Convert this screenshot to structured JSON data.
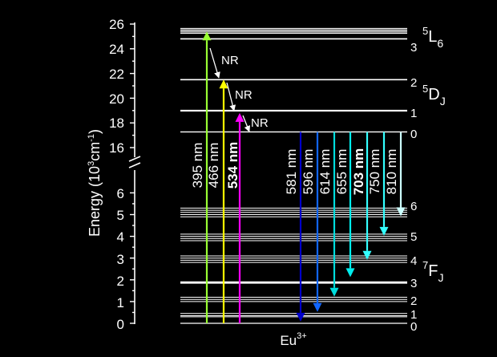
{
  "y_axis": {
    "title": "Energy (10",
    "title_sup": "3",
    "title_mid": "cm",
    "title_sup2": "-1",
    "title_end": ")",
    "upper_ticks": [
      "16",
      "18",
      "20",
      "22",
      "24",
      "26"
    ],
    "lower_ticks": [
      "0",
      "1",
      "2",
      "3",
      "4",
      "5",
      "6"
    ]
  },
  "ion_label": {
    "base": "Eu",
    "sup": "3+"
  },
  "term_labels": {
    "L6": {
      "pre": "5",
      "main": "L",
      "sub": "6"
    },
    "DJ": {
      "pre": "5",
      "main": "D",
      "sub": "J"
    },
    "FJ": {
      "pre": "7",
      "main": "F",
      "sub": "J"
    }
  },
  "j_labels": {
    "L6_j": "3",
    "D": [
      "2",
      "1",
      "0"
    ],
    "F": [
      "6",
      "5",
      "4",
      "3",
      "2",
      "1",
      "0"
    ]
  },
  "excitations": [
    {
      "label": "395 nm",
      "color": "#99ff33",
      "bold": false,
      "to_energy": 25.4
    },
    {
      "label": "466 nm",
      "color": "#ffff00",
      "bold": false,
      "to_energy": 21.5
    },
    {
      "label": "534 nm",
      "color": "#ff00ff",
      "bold": true,
      "to_energy": 18.8
    }
  ],
  "nr_label": "NR",
  "emissions": [
    {
      "label": "581 nm",
      "color": "#0000cc",
      "bold": false
    },
    {
      "label": "596 nm",
      "color": "#1166ff",
      "bold": false
    },
    {
      "label": "614 nm",
      "color": "#00dddd",
      "bold": false
    },
    {
      "label": "655 nm",
      "color": "#00eeee",
      "bold": false
    },
    {
      "label": "703 nm",
      "color": "#33ffff",
      "bold": true
    },
    {
      "label": "750 nm",
      "color": "#33ffff",
      "bold": false
    },
    {
      "label": "810 nm",
      "color": "#ccffff",
      "bold": false
    }
  ]
}
